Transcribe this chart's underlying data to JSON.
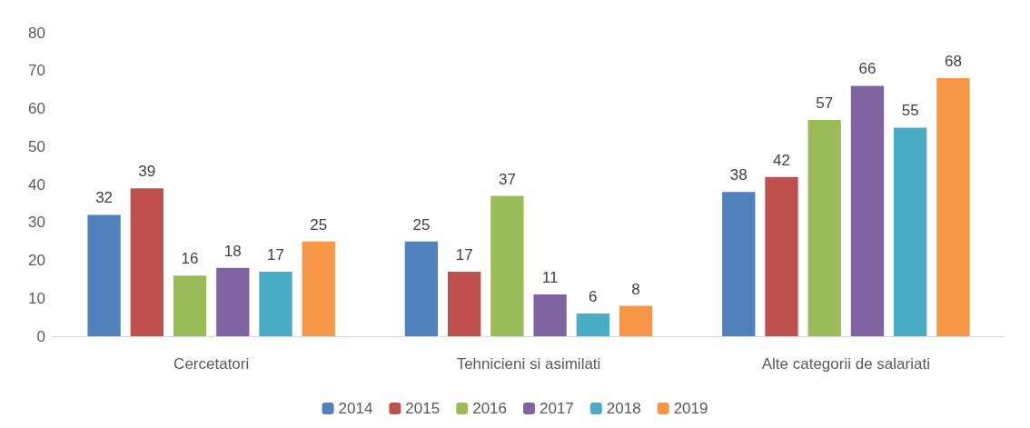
{
  "chart_data": {
    "type": "bar",
    "categories": [
      "Cercetatori",
      "Tehnicieni si asimilati",
      "Alte categorii de salariati"
    ],
    "series": [
      {
        "name": "2014",
        "color": "#4f81bd",
        "values": [
          32,
          25,
          38
        ]
      },
      {
        "name": "2015",
        "color": "#c0504d",
        "values": [
          39,
          17,
          42
        ]
      },
      {
        "name": "2016",
        "color": "#9bbb59",
        "values": [
          16,
          37,
          57
        ]
      },
      {
        "name": "2017",
        "color": "#8064a2",
        "values": [
          18,
          11,
          66
        ]
      },
      {
        "name": "2018",
        "color": "#4bacc6",
        "values": [
          17,
          6,
          55
        ]
      },
      {
        "name": "2019",
        "color": "#f79646",
        "values": [
          25,
          8,
          68
        ]
      }
    ],
    "ylim": [
      0,
      80
    ],
    "yticks": [
      0,
      10,
      20,
      30,
      40,
      50,
      60,
      70,
      80
    ],
    "grid": false,
    "legend": "bottom",
    "data_labels": true
  }
}
